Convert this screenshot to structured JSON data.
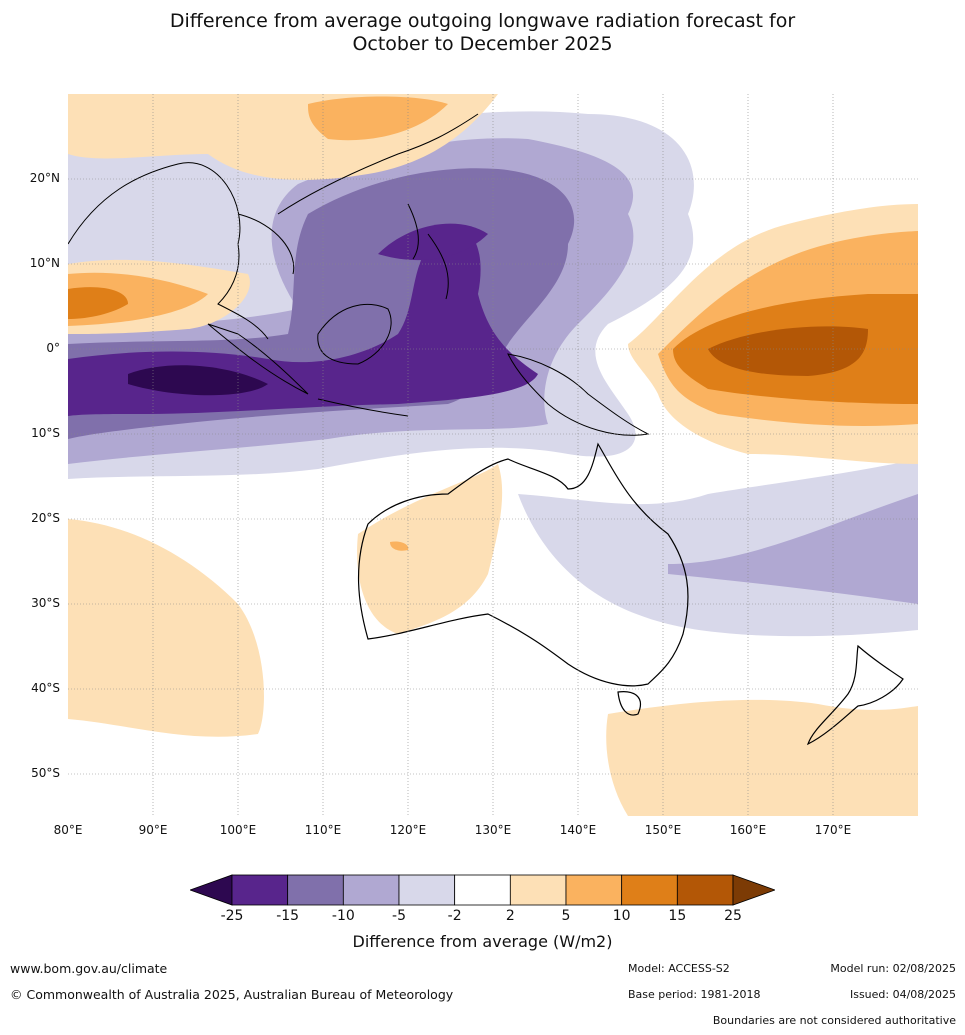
{
  "title_line1": "Difference from average outgoing longwave radiation forecast for",
  "title_line2": "October to December 2025",
  "lat_labels": [
    "20°N",
    "10°N",
    "0°",
    "10°S",
    "20°S",
    "30°S",
    "40°S",
    "50°S"
  ],
  "lon_labels": [
    "80°E",
    "90°E",
    "100°E",
    "110°E",
    "120°E",
    "130°E",
    "140°E",
    "150°E",
    "160°E",
    "170°E"
  ],
  "legend": {
    "ticks": [
      "-25",
      "-15",
      "-10",
      "-5",
      "-2",
      "2",
      "5",
      "10",
      "15",
      "25"
    ],
    "colors": [
      "#2d0850",
      "#58258c",
      "#8070ab",
      "#b0a8d2",
      "#d8d8ea",
      "#ffffff",
      "#fde0b6",
      "#fab25f",
      "#df7f18",
      "#b35706",
      "#7c3b05"
    ],
    "label": "Difference from average (W/m2)"
  },
  "footer": {
    "url": "www.bom.gov.au/climate",
    "copyright": "© Commonwealth of Australia 2025, Australian Bureau of Meteorology",
    "model": "Model: ACCESS-S2",
    "base_period": "Base period: 1981-2018",
    "model_run": "Model run: 02/08/2025",
    "issued": "Issued: 04/08/2025",
    "disclaimer": "Boundaries are not considered authoritative"
  }
}
